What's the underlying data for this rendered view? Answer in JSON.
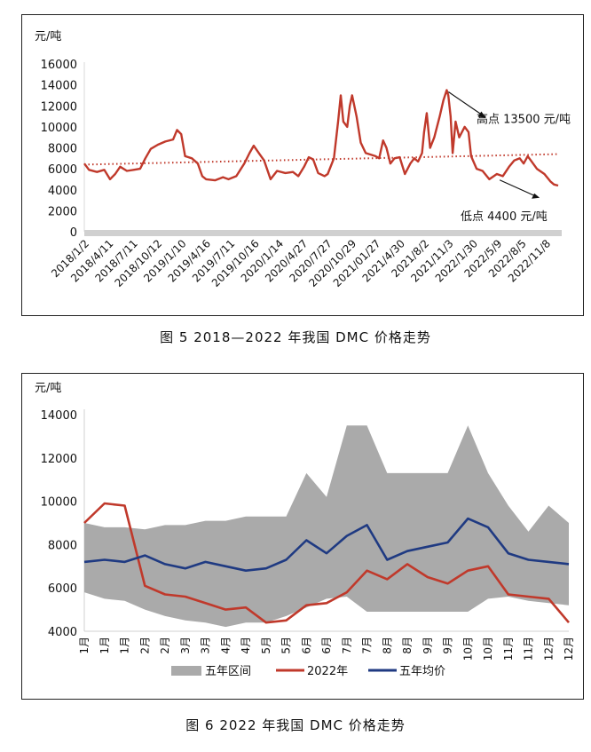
{
  "figure1": {
    "caption": "图 5  2018—2022 年我国 DMC 价格走势",
    "chart_data": {
      "type": "line",
      "unit_label": "元/吨",
      "yticks": [
        "16000",
        "14000",
        "12000",
        "10000",
        "8000",
        "6000",
        "4000",
        "2000",
        "0"
      ],
      "ylim": [
        0,
        16000
      ],
      "xlim": [
        "2018-01-02",
        "2022-12-31"
      ],
      "xticks": [
        "2018/1/2",
        "2018/4/11",
        "2018/7/11",
        "2018/10/12",
        "2019/1/10",
        "2019/4/16",
        "2019/7/11",
        "2019/10/16",
        "2020/1/14",
        "2020/4/27",
        "2020/7/27",
        "2020/10/29",
        "2021/01/27",
        "2021/4/30",
        "2021/8/2",
        "2021/11/3",
        "2022/1/30",
        "2022/5/9",
        "2022/8/5",
        "2022/11/8"
      ],
      "trendline": {
        "style": "dotted",
        "color": "#c0392b",
        "start": 6400,
        "end": 7400
      },
      "annotations": {
        "high": "高点 13500 元/吨",
        "low": "低点 4400 元/吨"
      },
      "series": [
        {
          "color": "#c0392b",
          "points": [
            [
              "2018-01-02",
              6500
            ],
            [
              "2018-01-20",
              5900
            ],
            [
              "2018-02-20",
              5700
            ],
            [
              "2018-03-20",
              5900
            ],
            [
              "2018-04-11",
              5000
            ],
            [
              "2018-05-01",
              5500
            ],
            [
              "2018-05-20",
              6200
            ],
            [
              "2018-06-15",
              5800
            ],
            [
              "2018-07-11",
              5900
            ],
            [
              "2018-08-05",
              6000
            ],
            [
              "2018-08-25",
              7000
            ],
            [
              "2018-09-15",
              7900
            ],
            [
              "2018-10-12",
              8300
            ],
            [
              "2018-11-10",
              8600
            ],
            [
              "2018-12-10",
              8800
            ],
            [
              "2018-12-25",
              9700
            ],
            [
              "2019-01-10",
              9300
            ],
            [
              "2019-01-25",
              7200
            ],
            [
              "2019-02-20",
              7000
            ],
            [
              "2019-03-15",
              6500
            ],
            [
              "2019-04-01",
              5300
            ],
            [
              "2019-04-16",
              5000
            ],
            [
              "2019-05-20",
              4900
            ],
            [
              "2019-06-20",
              5200
            ],
            [
              "2019-07-11",
              5000
            ],
            [
              "2019-08-10",
              5300
            ],
            [
              "2019-09-10",
              6500
            ],
            [
              "2019-09-30",
              7500
            ],
            [
              "2019-10-16",
              8200
            ],
            [
              "2019-11-05",
              7500
            ],
            [
              "2019-11-25",
              6800
            ],
            [
              "2019-12-20",
              5000
            ],
            [
              "2020-01-14",
              5800
            ],
            [
              "2020-02-15",
              5600
            ],
            [
              "2020-03-15",
              5700
            ],
            [
              "2020-04-05",
              5300
            ],
            [
              "2020-04-27",
              6200
            ],
            [
              "2020-05-15",
              7100
            ],
            [
              "2020-06-01",
              6900
            ],
            [
              "2020-06-20",
              5600
            ],
            [
              "2020-07-15",
              5300
            ],
            [
              "2020-07-27",
              5500
            ],
            [
              "2020-08-20",
              7000
            ],
            [
              "2020-09-05",
              10500
            ],
            [
              "2020-09-15",
              13000
            ],
            [
              "2020-09-25",
              10500
            ],
            [
              "2020-10-10",
              10000
            ],
            [
              "2020-10-20",
              12000
            ],
            [
              "2020-10-29",
              13000
            ],
            [
              "2020-11-15",
              11000
            ],
            [
              "2020-12-01",
              8500
            ],
            [
              "2020-12-20",
              7500
            ],
            [
              "2021-01-27",
              7200
            ],
            [
              "2021-02-10",
              7000
            ],
            [
              "2021-02-25",
              8700
            ],
            [
              "2021-03-10",
              8000
            ],
            [
              "2021-03-25",
              6500
            ],
            [
              "2021-04-10",
              7000
            ],
            [
              "2021-04-30",
              7100
            ],
            [
              "2021-05-20",
              5500
            ],
            [
              "2021-06-10",
              6500
            ],
            [
              "2021-06-25",
              7000
            ],
            [
              "2021-07-10",
              6700
            ],
            [
              "2021-07-25",
              7500
            ],
            [
              "2021-08-02",
              9500
            ],
            [
              "2021-08-12",
              11300
            ],
            [
              "2021-08-25",
              8000
            ],
            [
              "2021-09-10",
              9000
            ],
            [
              "2021-10-01",
              11000
            ],
            [
              "2021-10-15",
              12500
            ],
            [
              "2021-10-28",
              13500
            ],
            [
              "2021-11-03",
              13000
            ],
            [
              "2021-11-12",
              11000
            ],
            [
              "2021-11-20",
              7500
            ],
            [
              "2021-12-01",
              10500
            ],
            [
              "2021-12-15",
              9000
            ],
            [
              "2022-01-05",
              10000
            ],
            [
              "2022-01-20",
              9500
            ],
            [
              "2022-01-30",
              7200
            ],
            [
              "2022-02-20",
              6000
            ],
            [
              "2022-03-15",
              5800
            ],
            [
              "2022-04-10",
              5000
            ],
            [
              "2022-05-09",
              5500
            ],
            [
              "2022-06-01",
              5300
            ],
            [
              "2022-06-25",
              6200
            ],
            [
              "2022-07-15",
              6800
            ],
            [
              "2022-08-05",
              7000
            ],
            [
              "2022-08-20",
              6500
            ],
            [
              "2022-09-05",
              7200
            ],
            [
              "2022-09-20",
              6700
            ],
            [
              "2022-10-10",
              6000
            ],
            [
              "2022-11-08",
              5500
            ],
            [
              "2022-12-01",
              4800
            ],
            [
              "2022-12-15",
              4500
            ],
            [
              "2022-12-31",
              4400
            ]
          ]
        }
      ]
    }
  },
  "figure2": {
    "caption": "图 6  2022 年我国 DMC 价格走势",
    "chart_data": {
      "type": "line",
      "unit_label": "元/吨",
      "yticks": [
        "14000",
        "12000",
        "10000",
        "8000",
        "6000",
        "4000"
      ],
      "ylim": [
        4000,
        14000
      ],
      "xticks": [
        "1月",
        "1月",
        "1月",
        "2月",
        "2月",
        "3月",
        "3月",
        "4月",
        "4月",
        "5月",
        "5月",
        "6月",
        "6月",
        "7月",
        "7月",
        "8月",
        "8月",
        "9月",
        "9月",
        "10月",
        "10月",
        "11月",
        "11月",
        "12月",
        "12月"
      ],
      "legend": [
        "五年区间",
        "2022年",
        "五年均价"
      ],
      "colors": {
        "range": "#aaaaaa",
        "y2022": "#c0392b",
        "avg": "#1f3a82"
      },
      "x": [
        0,
        1,
        2,
        3,
        4,
        5,
        6,
        7,
        8,
        9,
        10,
        11,
        12,
        13,
        14,
        15,
        16,
        17,
        18,
        19,
        20,
        21,
        22,
        23,
        24
      ],
      "series": [
        {
          "name": "五年区间",
          "kind": "band",
          "low": [
            5800,
            5500,
            5400,
            5000,
            4700,
            4500,
            4400,
            4200,
            4400,
            4400,
            4700,
            5100,
            5500,
            5600,
            4900,
            4900,
            4900,
            4900,
            4900,
            4900,
            5500,
            5600,
            5400,
            5300,
            5200
          ],
          "high": [
            9000,
            8800,
            8800,
            8700,
            8900,
            8900,
            9100,
            9100,
            9300,
            9300,
            9300,
            11300,
            10200,
            13500,
            13500,
            11300,
            11300,
            11300,
            11300,
            13500,
            11300,
            9800,
            8600,
            9800,
            9000
          ]
        },
        {
          "name": "2022年",
          "kind": "line",
          "values": [
            9000,
            9900,
            9800,
            6100,
            5700,
            5600,
            5300,
            5000,
            5100,
            4400,
            4500,
            5200,
            5300,
            5800,
            6800,
            6400,
            7100,
            6500,
            6200,
            6800,
            7000,
            5700,
            5600,
            5500,
            4400
          ]
        },
        {
          "name": "五年均价",
          "kind": "line",
          "values": [
            7200,
            7300,
            7200,
            7500,
            7100,
            6900,
            7200,
            7000,
            6800,
            6900,
            7300,
            8200,
            7600,
            8400,
            8900,
            7300,
            7700,
            7900,
            8100,
            9200,
            8800,
            7600,
            7300,
            7200,
            7100
          ]
        }
      ]
    }
  }
}
